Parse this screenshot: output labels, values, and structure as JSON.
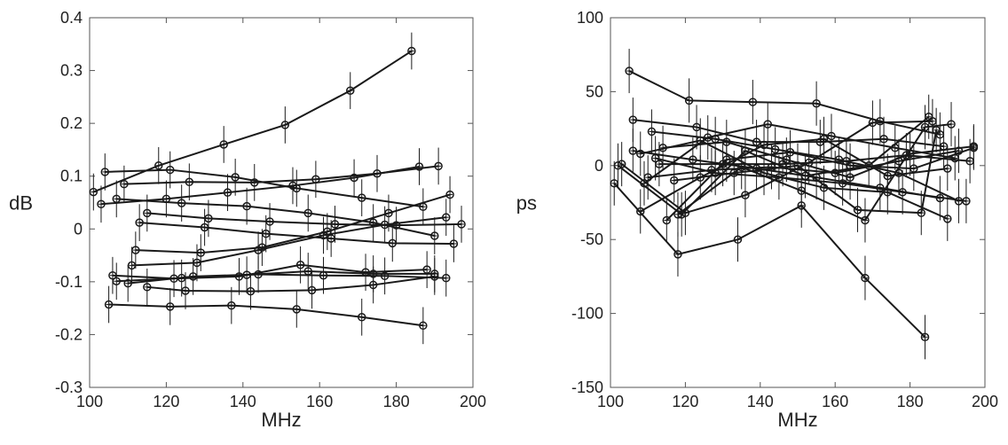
{
  "chart_data": [
    {
      "type": "line",
      "xlabel": "MHz",
      "ylabel": "dB",
      "xlim": [
        100,
        200
      ],
      "ylim": [
        -0.3,
        0.4
      ],
      "xticks": [
        100,
        120,
        140,
        160,
        180,
        200
      ],
      "yticks": [
        -0.3,
        -0.2,
        -0.1,
        0,
        0.1,
        0.2,
        0.3,
        0.4
      ],
      "ytick_labels": [
        "-0.3",
        "-0.2",
        "-0.1",
        "0",
        "0.1",
        "0.2",
        "0.3",
        "0.4"
      ],
      "xtick_labels": [
        "100",
        "120",
        "140",
        "160",
        "180",
        "200"
      ],
      "grid": false,
      "series": [
        {
          "x": [
            101,
            118,
            135,
            151,
            168,
            184
          ],
          "y": [
            0.07,
            0.12,
            0.16,
            0.197,
            0.262,
            0.337
          ],
          "err": 0.035
        },
        {
          "x": [
            104,
            121,
            138,
            154,
            171,
            187
          ],
          "y": [
            0.108,
            0.112,
            0.098,
            0.077,
            0.059,
            0.042
          ],
          "err": 0.035
        },
        {
          "x": [
            109,
            126,
            143,
            159,
            175,
            191
          ],
          "y": [
            0.085,
            0.089,
            0.088,
            0.094,
            0.105,
            0.119
          ],
          "err": 0.035
        },
        {
          "x": [
            107,
            124,
            141,
            157,
            174,
            190
          ],
          "y": [
            0.057,
            0.049,
            0.043,
            0.03,
            0.012,
            -0.013
          ],
          "err": 0.035
        },
        {
          "x": [
            103,
            120,
            136,
            153,
            169,
            186
          ],
          "y": [
            0.047,
            0.057,
            0.069,
            0.082,
            0.097,
            0.118
          ],
          "err": 0.035
        },
        {
          "x": [
            113,
            130,
            146,
            163,
            179,
            195
          ],
          "y": [
            0.012,
            0.003,
            -0.009,
            -0.018,
            -0.027,
            -0.028
          ],
          "err": 0.035
        },
        {
          "x": [
            115,
            131,
            147,
            164,
            180,
            197
          ],
          "y": [
            0.03,
            0.02,
            0.014,
            0.009,
            0.007,
            0.009
          ],
          "err": 0.035
        },
        {
          "x": [
            112,
            129,
            145,
            162,
            178,
            194
          ],
          "y": [
            -0.04,
            -0.045,
            -0.035,
            -0.005,
            0.03,
            0.065
          ],
          "err": 0.035
        },
        {
          "x": [
            111,
            128,
            144,
            161,
            177,
            193
          ],
          "y": [
            -0.069,
            -0.064,
            -0.04,
            -0.012,
            0.008,
            0.022
          ],
          "err": 0.035
        },
        {
          "x": [
            106,
            122,
            139,
            155,
            172,
            188
          ],
          "y": [
            -0.088,
            -0.094,
            -0.09,
            -0.068,
            -0.082,
            -0.077
          ],
          "err": 0.035
        },
        {
          "x": [
            110,
            127,
            144,
            161,
            177,
            193
          ],
          "y": [
            -0.103,
            -0.09,
            -0.086,
            -0.088,
            -0.089,
            -0.093
          ],
          "err": 0.035
        },
        {
          "x": [
            107,
            124,
            141,
            157,
            174,
            190
          ],
          "y": [
            -0.099,
            -0.093,
            -0.087,
            -0.08,
            -0.085,
            -0.085
          ],
          "err": 0.035
        },
        {
          "x": [
            115,
            125,
            142,
            158,
            174,
            190
          ],
          "y": [
            -0.11,
            -0.117,
            -0.118,
            -0.116,
            -0.106,
            -0.09
          ],
          "err": 0.035
        },
        {
          "x": [
            105,
            121,
            137,
            154,
            171,
            187
          ],
          "y": [
            -0.143,
            -0.147,
            -0.145,
            -0.152,
            -0.167,
            -0.183
          ],
          "err": 0.035
        }
      ]
    },
    {
      "type": "line",
      "xlabel": "MHz",
      "ylabel": "ps",
      "xlim": [
        100,
        200
      ],
      "ylim": [
        -150,
        100
      ],
      "xticks": [
        100,
        120,
        140,
        160,
        180,
        200
      ],
      "yticks": [
        -150,
        -100,
        -50,
        0,
        50,
        100
      ],
      "ytick_labels": [
        "-150",
        "-100",
        "-50",
        "0",
        "50",
        "100"
      ],
      "xtick_labels": [
        "100",
        "120",
        "140",
        "160",
        "180",
        "200"
      ],
      "grid": false,
      "series": [
        {
          "x": [
            105,
            121,
            138,
            155,
            172,
            188
          ],
          "y": [
            64,
            44,
            43,
            42,
            30,
            21
          ],
          "err": 15
        },
        {
          "x": [
            101,
            118,
            134,
            151,
            168,
            184
          ],
          "y": [
            -12,
            -60,
            -50,
            -27,
            -76,
            -116
          ],
          "err": 15
        },
        {
          "x": [
            106,
            123,
            139,
            156,
            173,
            189
          ],
          "y": [
            31,
            26,
            16,
            16,
            18,
            13
          ],
          "err": 15
        },
        {
          "x": [
            111,
            128,
            144,
            161,
            177,
            193
          ],
          "y": [
            23,
            18,
            11,
            4,
            -5,
            -24
          ],
          "err": 15
        },
        {
          "x": [
            109,
            126,
            142,
            159,
            176,
            192
          ],
          "y": [
            -12,
            19,
            28,
            20,
            12,
            5
          ],
          "err": 15
        },
        {
          "x": [
            102,
            119,
            136,
            152,
            169,
            185
          ],
          "y": [
            0,
            -33,
            10,
            -7,
            0,
            33
          ],
          "err": 15
        },
        {
          "x": [
            108,
            124,
            141,
            157,
            174,
            190
          ],
          "y": [
            8,
            17,
            -5,
            -15,
            -18,
            -36
          ],
          "err": 15
        },
        {
          "x": [
            115,
            131,
            148,
            164,
            181,
            197
          ],
          "y": [
            -37,
            4,
            9,
            0,
            -2,
            12
          ],
          "err": 15
        },
        {
          "x": [
            103,
            120,
            136,
            153,
            170,
            186
          ],
          "y": [
            1,
            -32,
            -20,
            2,
            29,
            30
          ],
          "err": 15
        },
        {
          "x": [
            113,
            130,
            146,
            163,
            179,
            196
          ],
          "y": [
            1,
            1,
            1,
            3,
            7,
            3
          ],
          "err": 15
        },
        {
          "x": [
            114,
            131,
            147,
            164,
            180,
            197
          ],
          "y": [
            12,
            16,
            4,
            -8,
            8,
            13
          ],
          "err": 15
        },
        {
          "x": [
            110,
            127,
            143,
            160,
            177,
            193
          ],
          "y": [
            -8,
            -3,
            -1,
            -5,
            3,
            10
          ],
          "err": 15
        },
        {
          "x": [
            106,
            122,
            139,
            155,
            172,
            188
          ],
          "y": [
            10,
            4,
            -2,
            -8,
            -15,
            -22
          ],
          "err": 15
        },
        {
          "x": [
            112,
            128,
            145,
            162,
            178,
            195
          ],
          "y": [
            5,
            -5,
            -8,
            -12,
            -18,
            -24
          ],
          "err": 15
        },
        {
          "x": [
            108,
            124,
            141,
            157,
            174,
            190
          ],
          "y": [
            -31,
            -8,
            14,
            18,
            -7,
            -2
          ],
          "err": 15
        },
        {
          "x": [
            118,
            135,
            151,
            168,
            184,
            191
          ],
          "y": [
            -33,
            -1,
            -17,
            -37,
            26,
            28
          ],
          "err": 15
        },
        {
          "x": [
            117,
            133,
            150,
            166,
            183,
            187
          ],
          "y": [
            -10,
            -5,
            0,
            -30,
            -32,
            24
          ],
          "err": 15
        }
      ]
    }
  ]
}
